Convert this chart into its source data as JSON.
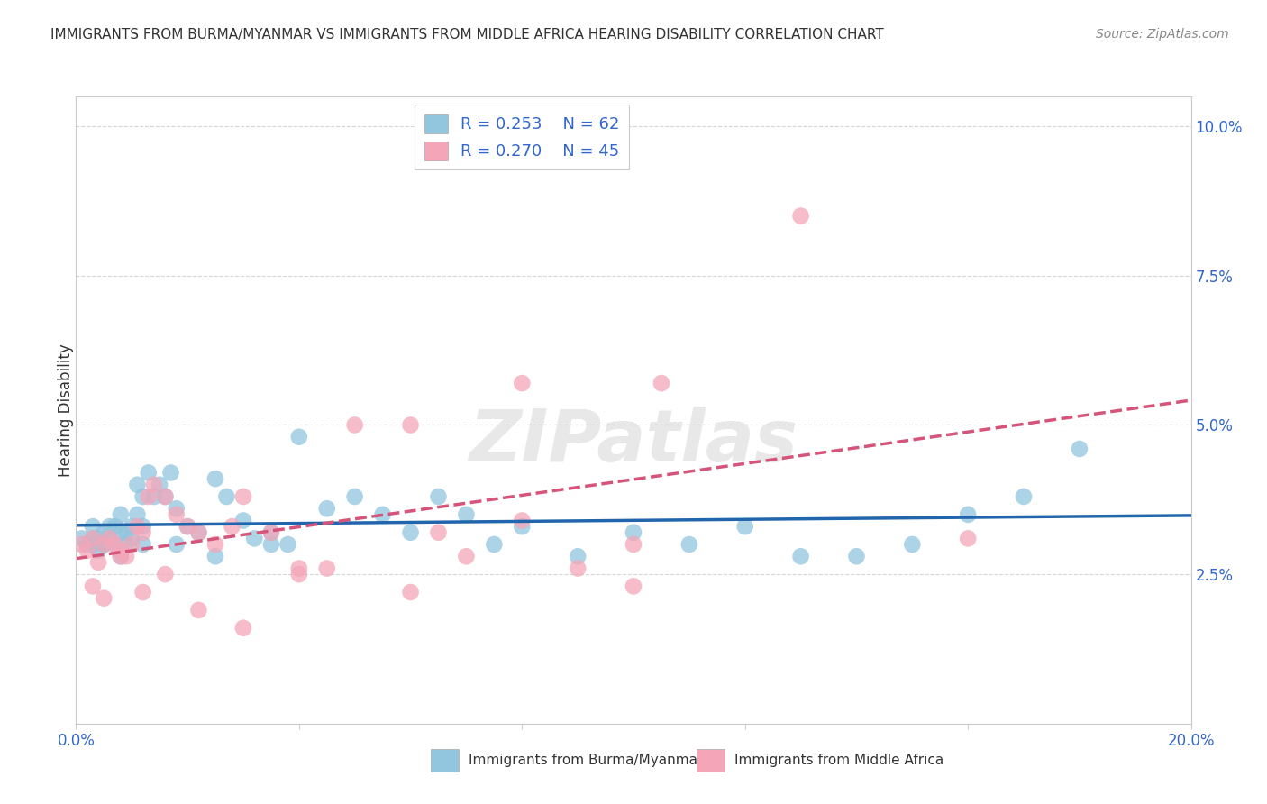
{
  "title": "IMMIGRANTS FROM BURMA/MYANMAR VS IMMIGRANTS FROM MIDDLE AFRICA HEARING DISABILITY CORRELATION CHART",
  "source": "Source: ZipAtlas.com",
  "ylabel": "Hearing Disability",
  "xlim": [
    0.0,
    0.2
  ],
  "ylim": [
    0.0,
    0.105
  ],
  "color_blue": "#92c5de",
  "color_pink": "#f4a6b8",
  "trendline_blue_color": "#2166ac",
  "trendline_pink_color": "#d6547a",
  "watermark": "ZIPatlas",
  "label1": "Immigrants from Burma/Myanmar",
  "label2": "Immigrants from Middle Africa",
  "background_color": "#ffffff",
  "grid_color": "#cccccc",
  "blue_x": [
    0.001,
    0.002,
    0.003,
    0.003,
    0.004,
    0.004,
    0.005,
    0.005,
    0.006,
    0.006,
    0.007,
    0.007,
    0.008,
    0.008,
    0.009,
    0.009,
    0.01,
    0.01,
    0.011,
    0.011,
    0.012,
    0.012,
    0.013,
    0.014,
    0.015,
    0.016,
    0.017,
    0.018,
    0.02,
    0.022,
    0.025,
    0.027,
    0.03,
    0.032,
    0.035,
    0.038,
    0.04,
    0.045,
    0.05,
    0.055,
    0.06,
    0.065,
    0.07,
    0.075,
    0.08,
    0.09,
    0.1,
    0.11,
    0.12,
    0.13,
    0.14,
    0.15,
    0.16,
    0.17,
    0.18,
    0.003,
    0.005,
    0.008,
    0.012,
    0.018,
    0.025,
    0.035
  ],
  "blue_y": [
    0.031,
    0.03,
    0.033,
    0.03,
    0.031,
    0.029,
    0.032,
    0.03,
    0.033,
    0.031,
    0.033,
    0.03,
    0.032,
    0.035,
    0.032,
    0.03,
    0.033,
    0.031,
    0.04,
    0.035,
    0.038,
    0.033,
    0.042,
    0.038,
    0.04,
    0.038,
    0.042,
    0.036,
    0.033,
    0.032,
    0.041,
    0.038,
    0.034,
    0.031,
    0.032,
    0.03,
    0.048,
    0.036,
    0.038,
    0.035,
    0.032,
    0.038,
    0.035,
    0.03,
    0.033,
    0.028,
    0.032,
    0.03,
    0.033,
    0.028,
    0.028,
    0.03,
    0.035,
    0.038,
    0.046,
    0.031,
    0.03,
    0.028,
    0.03,
    0.03,
    0.028,
    0.03
  ],
  "pink_x": [
    0.001,
    0.002,
    0.003,
    0.004,
    0.005,
    0.006,
    0.007,
    0.008,
    0.009,
    0.01,
    0.011,
    0.012,
    0.013,
    0.014,
    0.016,
    0.018,
    0.02,
    0.022,
    0.025,
    0.028,
    0.03,
    0.035,
    0.04,
    0.045,
    0.05,
    0.06,
    0.065,
    0.07,
    0.08,
    0.09,
    0.1,
    0.105,
    0.003,
    0.005,
    0.008,
    0.012,
    0.016,
    0.022,
    0.03,
    0.04,
    0.06,
    0.08,
    0.1,
    0.13,
    0.16
  ],
  "pink_y": [
    0.03,
    0.029,
    0.031,
    0.027,
    0.03,
    0.031,
    0.03,
    0.029,
    0.028,
    0.03,
    0.033,
    0.032,
    0.038,
    0.04,
    0.038,
    0.035,
    0.033,
    0.032,
    0.03,
    0.033,
    0.038,
    0.032,
    0.026,
    0.026,
    0.05,
    0.05,
    0.032,
    0.028,
    0.034,
    0.026,
    0.023,
    0.057,
    0.023,
    0.021,
    0.028,
    0.022,
    0.025,
    0.019,
    0.016,
    0.025,
    0.022,
    0.057,
    0.03,
    0.085,
    0.031
  ],
  "yticks_right": [
    0.025,
    0.05,
    0.075,
    0.1
  ],
  "yticklabels_right": [
    "2.5%",
    "5.0%",
    "7.5%",
    "10.0%"
  ]
}
